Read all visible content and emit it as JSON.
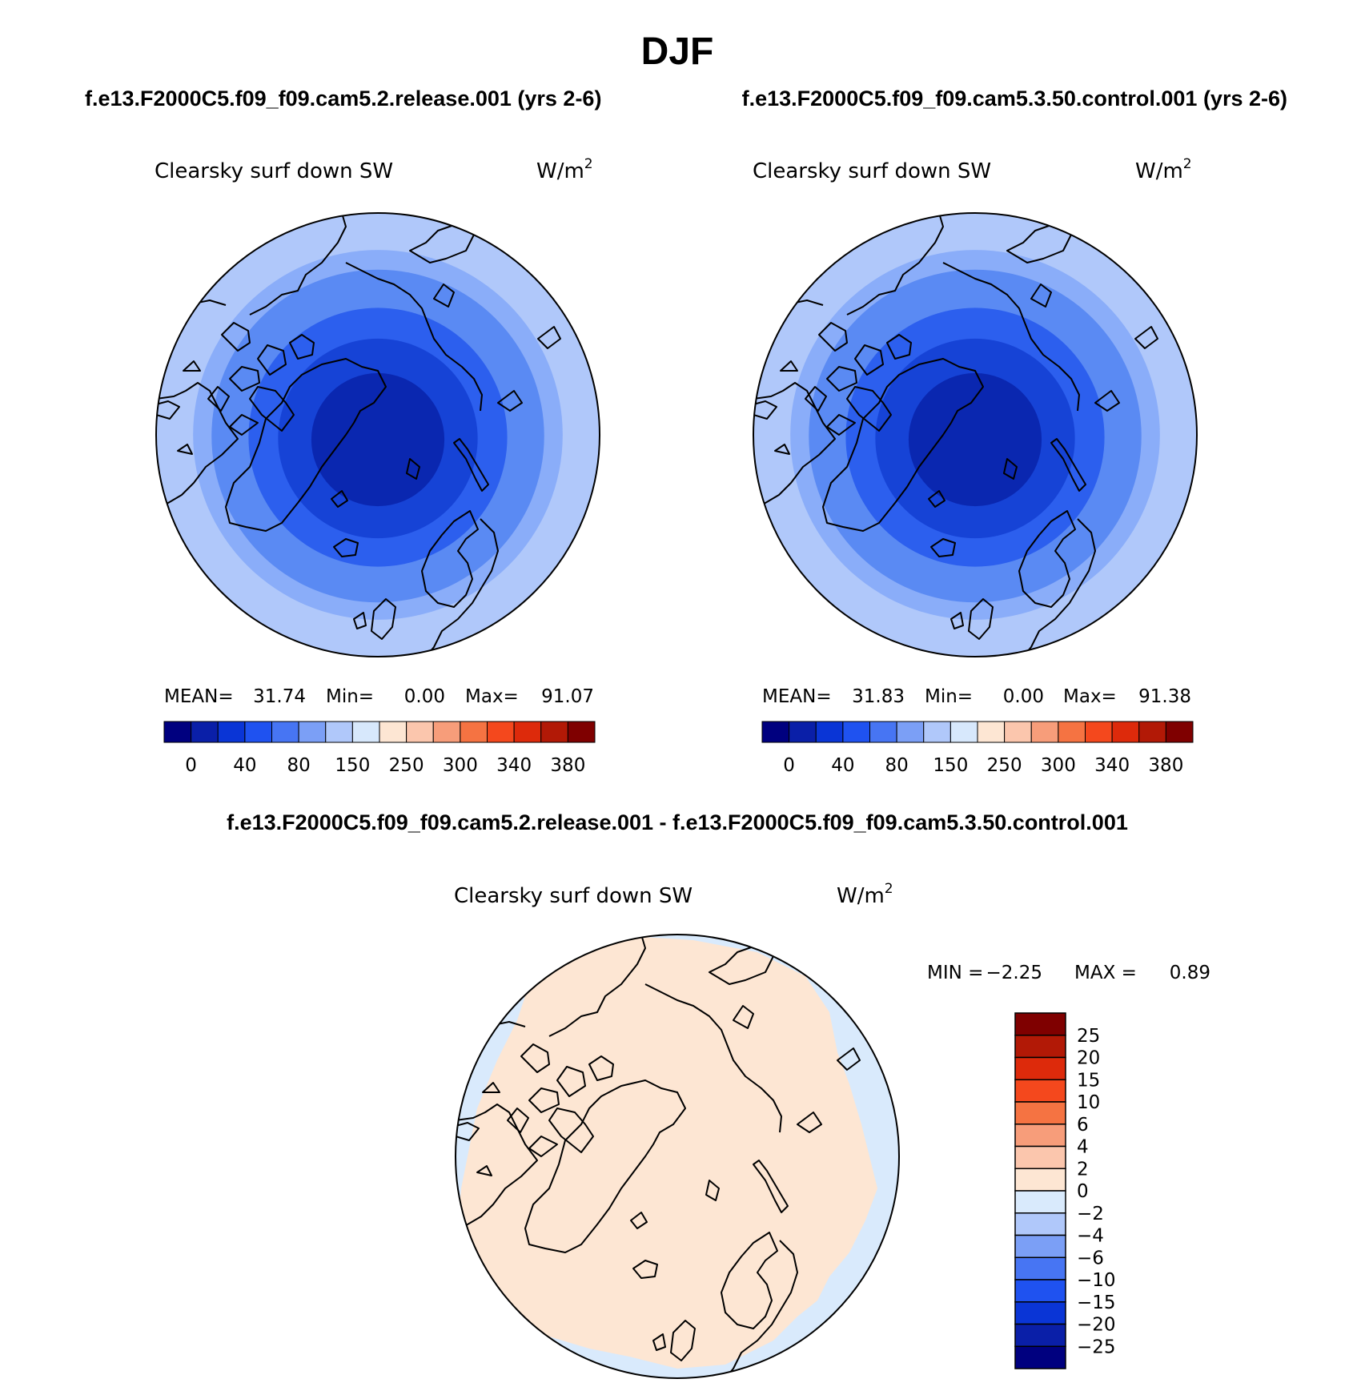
{
  "title": "DJF",
  "panels": [
    {
      "case_title": "f.e13.F2000C5.f09_f09.cam5.2.release.001 (yrs 2-6)",
      "var_label": "Clearsky surf down SW",
      "units": "W/m",
      "units_sup": "2",
      "stats": {
        "mean_label": "MEAN=",
        "mean": "31.74",
        "min_label": "Min=",
        "min": "0.00",
        "max_label": "Max=",
        "max": "91.07"
      },
      "rings": [
        {
          "lat_edge": 40,
          "color": "#8aadf9"
        },
        {
          "lat_edge": 45,
          "color": "#5a8af3"
        },
        {
          "lat_edge": 55,
          "color": "#2c5fee"
        },
        {
          "lat_edge": 63,
          "color": "#1643d6"
        },
        {
          "lat_edge": 72,
          "color": "#0a27b0"
        }
      ]
    },
    {
      "case_title": "f.e13.F2000C5.f09_f09.cam5.3.50.control.001 (yrs 2-6)",
      "var_label": "Clearsky surf down SW",
      "units": "W/m",
      "units_sup": "2",
      "stats": {
        "mean_label": "MEAN=",
        "mean": "31.83",
        "min_label": "Min=",
        "min": "0.00",
        "max_label": "Max=",
        "max": "91.38"
      },
      "rings": [
        {
          "lat_edge": 40,
          "color": "#8aadf9"
        },
        {
          "lat_edge": 45,
          "color": "#5a8af3"
        },
        {
          "lat_edge": 55,
          "color": "#2c5fee"
        },
        {
          "lat_edge": 63,
          "color": "#1643d6"
        },
        {
          "lat_edge": 72,
          "color": "#0a27b0"
        }
      ]
    }
  ],
  "colorbar": {
    "colors": [
      "#00007f",
      "#0a1fa8",
      "#0a35d6",
      "#1f52f0",
      "#4775f3",
      "#7b9ff6",
      "#b0c8fa",
      "#d7e8fc",
      "#fde6d3",
      "#fbc6ad",
      "#f79d7a",
      "#f57342",
      "#f4481d",
      "#dd2a0b",
      "#b21906",
      "#7f0000"
    ],
    "labels": [
      "0",
      "40",
      "80",
      "150",
      "250",
      "300",
      "340",
      "380"
    ]
  },
  "difference": {
    "title": "f.e13.F2000C5.f09_f09.cam5.2.release.001 - f.e13.F2000C5.f09_f09.cam5.3.50.control.001",
    "var_label": "Clearsky surf down SW",
    "units": "W/m",
    "units_sup": "2",
    "stats": {
      "min_label": "MIN =",
      "min": "−2.25",
      "max_label": "MAX =",
      "max": "0.89"
    },
    "background_color": "#d9eafc",
    "positive_color": "#fde6d3",
    "colorbar_colors": [
      "#7f0000",
      "#b21906",
      "#dd2a0b",
      "#f4481d",
      "#f57342",
      "#f79d7a",
      "#fbc6ad",
      "#fde6d3",
      "#d9eafc",
      "#b0c8fa",
      "#7b9ff6",
      "#4775f3",
      "#1f52f0",
      "#0a35d6",
      "#0a1fa8",
      "#00007f"
    ],
    "colorbar_labels": [
      "25",
      "20",
      "15",
      "10",
      "6",
      "4",
      "2",
      "0",
      "−2",
      "−4",
      "−6",
      "−10",
      "−15",
      "−20",
      "−25"
    ]
  }
}
